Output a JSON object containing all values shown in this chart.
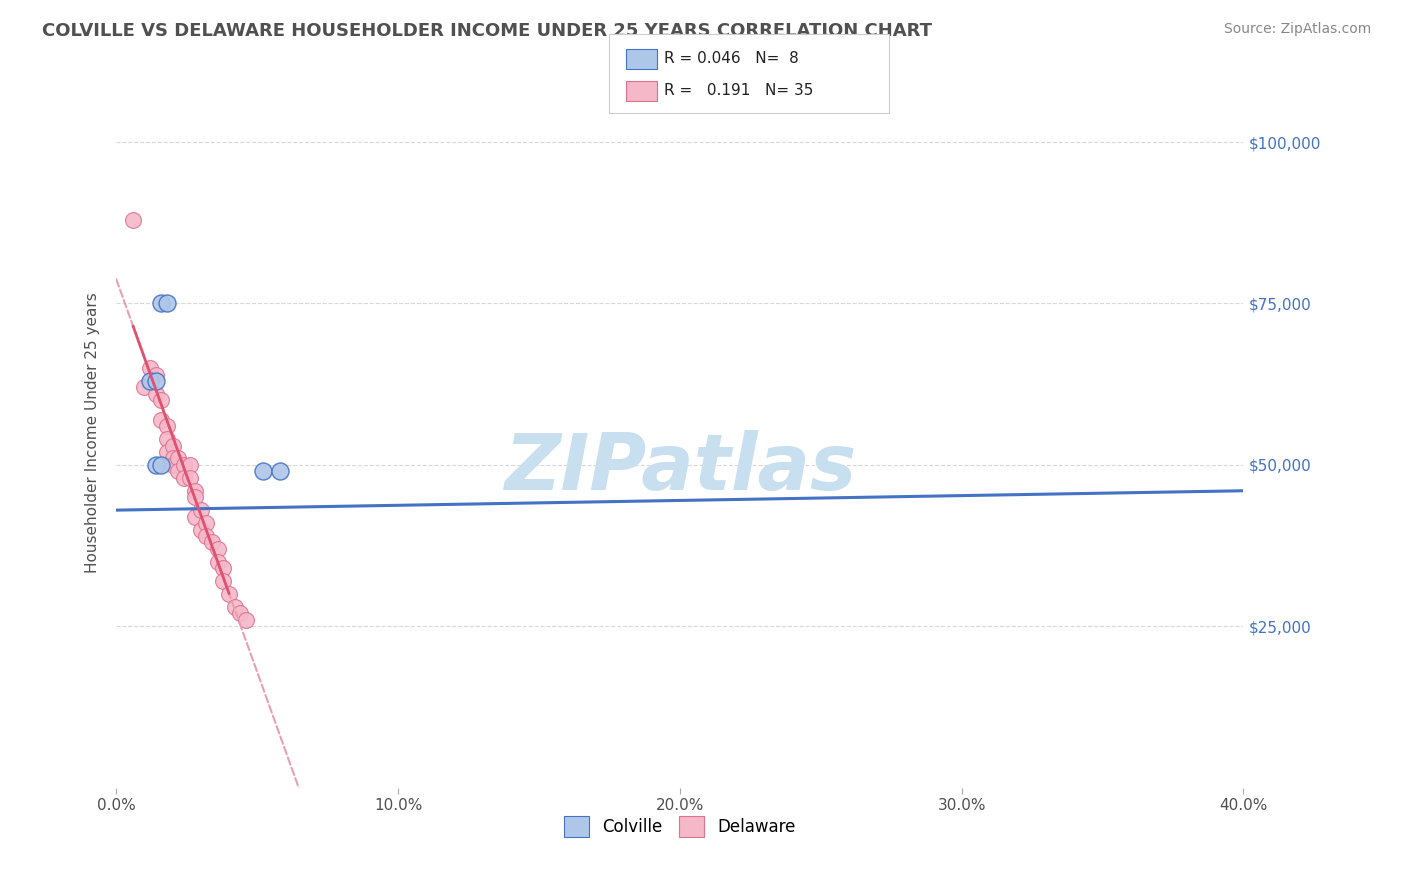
{
  "title": "COLVILLE VS DELAWARE HOUSEHOLDER INCOME UNDER 25 YEARS CORRELATION CHART",
  "source": "Source: ZipAtlas.com",
  "ylabel": "Householder Income Under 25 years",
  "xlim": [
    0.0,
    0.4
  ],
  "ylim": [
    0,
    110000
  ],
  "yticks": [
    0,
    25000,
    50000,
    75000,
    100000
  ],
  "ytick_labels": [
    "",
    "$25,000",
    "$50,000",
    "$75,000",
    "$100,000"
  ],
  "xticks": [
    0.0,
    0.1,
    0.2,
    0.3,
    0.4
  ],
  "xtick_labels": [
    "0.0%",
    "10.0%",
    "20.0%",
    "30.0%",
    "40.0%"
  ],
  "R_colville": 0.046,
  "N_colville": 8,
  "R_delaware": 0.191,
  "N_delaware": 35,
  "colville_color": "#aec6e8",
  "colville_edge": "#4472c4",
  "delaware_color": "#f4b8c8",
  "delaware_edge": "#e07090",
  "colville_x": [
    0.012,
    0.014,
    0.014,
    0.016,
    0.016,
    0.018,
    0.052,
    0.058
  ],
  "colville_y": [
    63000,
    63000,
    50000,
    50000,
    75000,
    75000,
    49000,
    49000
  ],
  "delaware_x": [
    0.006,
    0.01,
    0.012,
    0.014,
    0.014,
    0.016,
    0.016,
    0.018,
    0.018,
    0.018,
    0.02,
    0.02,
    0.02,
    0.022,
    0.022,
    0.024,
    0.024,
    0.026,
    0.026,
    0.028,
    0.028,
    0.028,
    0.03,
    0.03,
    0.032,
    0.032,
    0.034,
    0.036,
    0.036,
    0.038,
    0.038,
    0.04,
    0.042,
    0.044,
    0.046
  ],
  "delaware_y": [
    88000,
    62000,
    65000,
    64000,
    61000,
    60000,
    57000,
    56000,
    54000,
    52000,
    53000,
    51000,
    50000,
    51000,
    49000,
    50000,
    48000,
    50000,
    48000,
    46000,
    45000,
    42000,
    43000,
    40000,
    41000,
    39000,
    38000,
    37000,
    35000,
    34000,
    32000,
    30000,
    28000,
    27000,
    26000
  ],
  "watermark_text": "ZIPatlas",
  "watermark_color": "#c8dff0",
  "background_color": "#ffffff",
  "grid_color": "#d8d8d8",
  "title_color": "#505050",
  "axis_label_color": "#505050",
  "tick_color_y_right": "#4472c4",
  "tick_color_x": "#505050",
  "blue_line_color": "#4472c4",
  "pink_dash_color": "#e8a0b0",
  "pink_solid_color": "#e05070"
}
